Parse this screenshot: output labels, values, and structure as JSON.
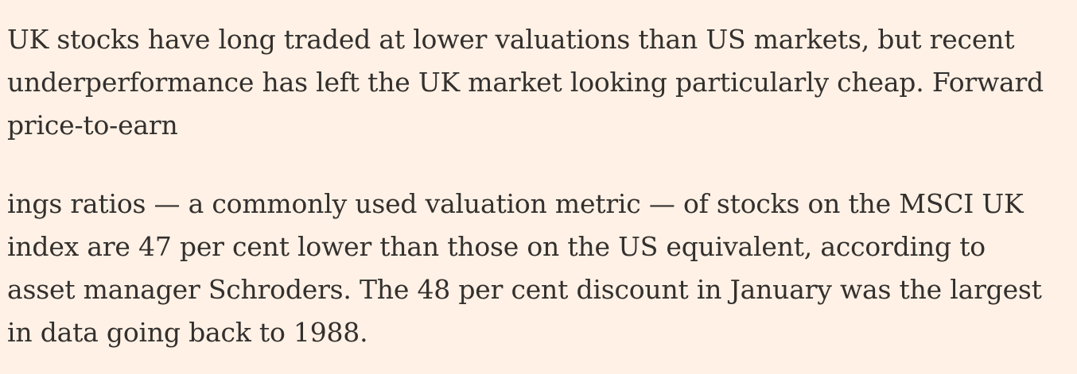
{
  "article": {
    "paragraphs": [
      "UK stocks have long traded at lower valuations than US markets, but recent underperformance has left the UK market looking particularly cheap. Forward price-to-earn",
      "ings ratios — a commonly used valuation metric — of stocks on the MSCI UK index are 47 per cent lower than those on the US equivalent, according to asset manager Schroders. The 48 per cent discount in January was the largest in data going back to 1988."
    ]
  },
  "colors": {
    "background": "#FFF1E5",
    "text": "#33302E"
  }
}
